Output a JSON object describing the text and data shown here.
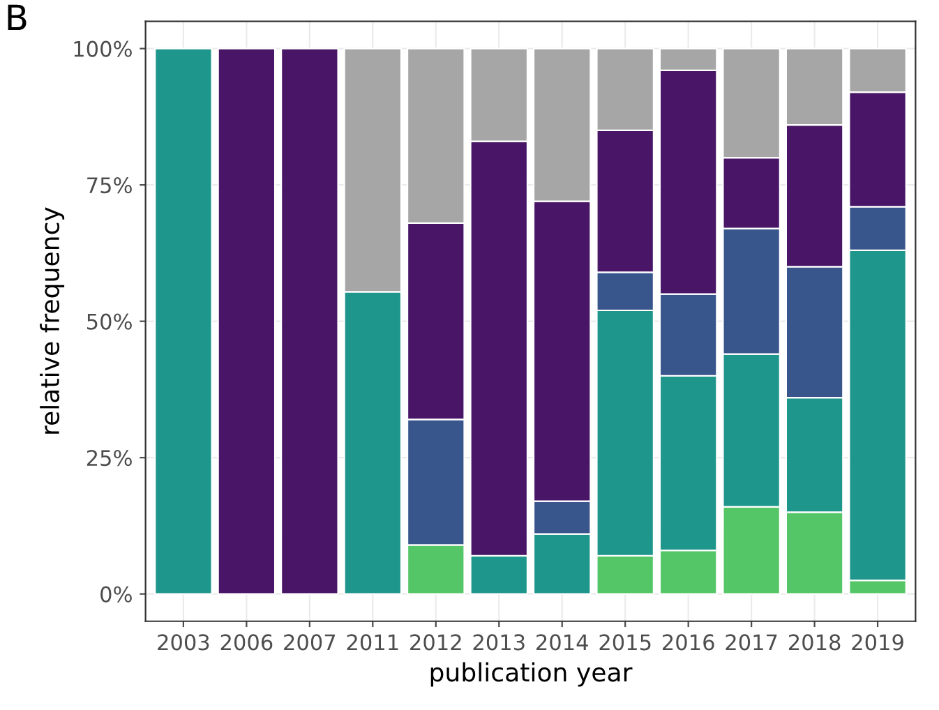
{
  "chart_data": {
    "type": "bar",
    "stacked": true,
    "xlabel": "publication year",
    "ylabel": "relative frequency",
    "annotations": [
      "B"
    ],
    "categories": [
      "2003",
      "2006",
      "2007",
      "2011",
      "2012",
      "2013",
      "2014",
      "2015",
      "2016",
      "2017",
      "2018",
      "2019"
    ],
    "series": [
      {
        "color": "#55c667",
        "values": [
          0,
          0,
          0,
          0,
          9,
          0,
          0,
          7,
          8,
          16,
          15,
          2.5
        ]
      },
      {
        "color": "#1f968b",
        "values": [
          100,
          0,
          0,
          55.4,
          0,
          7,
          11,
          45,
          32,
          28,
          21,
          60.5
        ]
      },
      {
        "color": "#39568c",
        "values": [
          0,
          0,
          0,
          0,
          23,
          0,
          6,
          7,
          15,
          23,
          24,
          8
        ]
      },
      {
        "color": "#481567",
        "values": [
          0,
          100,
          100,
          0,
          36,
          76,
          55,
          26,
          41,
          13,
          26,
          21
        ]
      },
      {
        "color": "#a6a6a6",
        "values": [
          0,
          0,
          0,
          44.6,
          32,
          17,
          28,
          15,
          4,
          20,
          14,
          8
        ]
      }
    ],
    "ylim": [
      -5,
      105
    ],
    "yticks": [
      {
        "value": 0,
        "label": "0%"
      },
      {
        "value": 25,
        "label": "25%"
      },
      {
        "value": 50,
        "label": "50%"
      },
      {
        "value": 75,
        "label": "75%"
      },
      {
        "value": 100,
        "label": "100%"
      }
    ],
    "grid": true
  }
}
